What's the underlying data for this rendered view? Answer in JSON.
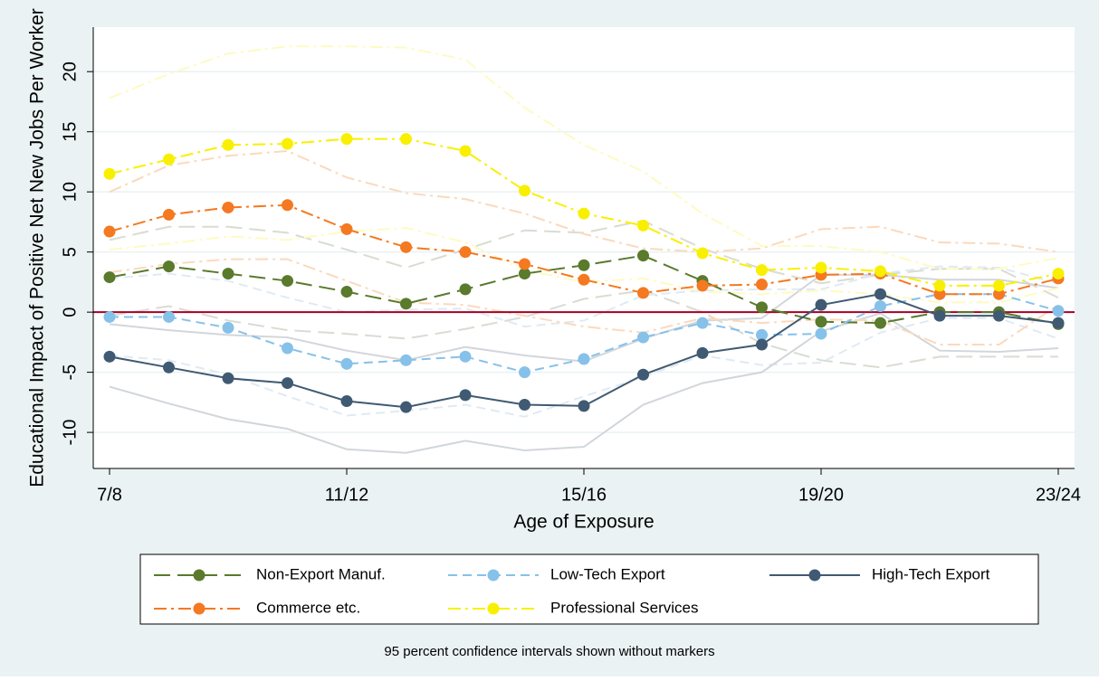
{
  "chart_data": {
    "type": "line",
    "y_label": "Educational Impact of Positive Net New Jobs Per Worker",
    "x_label": "Age of Exposure",
    "note": "95 percent confidence intervals shown without markers",
    "categories": [
      "7/8",
      null,
      null,
      null,
      "11/12",
      null,
      null,
      null,
      "15/16",
      null,
      null,
      null,
      "19/20",
      null,
      null,
      null,
      "23/24"
    ],
    "ylim": [
      -13,
      23.7
    ],
    "yticks": [
      -10,
      -5,
      0,
      5,
      10,
      15,
      20
    ],
    "grid": true,
    "hline": 0,
    "hline_color": "#a50026",
    "legend_position": "bottom",
    "series": [
      {
        "name": "Non-Export Manuf.",
        "color": "#5a7a2c",
        "ci_color": "#d9dcd2",
        "line_style": "longdash",
        "values": [
          2.9,
          3.8,
          3.2,
          2.6,
          1.7,
          0.7,
          1.9,
          3.2,
          3.9,
          4.7,
          2.6,
          0.4,
          -0.8,
          -0.9,
          0.0,
          0.0,
          -1.0
        ],
        "ci_upper": [
          6.0,
          7.1,
          7.1,
          6.6,
          5.2,
          3.7,
          5.2,
          6.8,
          6.6,
          7.6,
          5.3,
          3.6,
          2.4,
          3.1,
          3.6,
          3.6,
          1.2
        ],
        "ci_lower": [
          -0.3,
          0.5,
          -0.7,
          -1.5,
          -1.8,
          -2.2,
          -1.4,
          -0.4,
          1.1,
          1.8,
          0.0,
          -2.6,
          -4.0,
          -4.6,
          -3.7,
          -3.7,
          -3.7
        ]
      },
      {
        "name": "Low-Tech Export",
        "color": "#86c1ea",
        "ci_color": "#dfeaf4",
        "line_style": "dash",
        "values": [
          -0.4,
          -0.4,
          -1.3,
          -3.0,
          -4.3,
          -4.0,
          -3.7,
          -5.0,
          -3.9,
          -2.1,
          -0.9,
          -1.9,
          -1.8,
          0.5,
          1.5,
          1.5,
          0.1
        ],
        "ci_upper": [
          2.8,
          3.2,
          2.6,
          1.2,
          0.0,
          0.2,
          0.3,
          -1.2,
          -0.7,
          1.4,
          1.8,
          1.9,
          1.9,
          3.2,
          3.8,
          3.7,
          2.4
        ],
        "ci_lower": [
          -3.6,
          -4.0,
          -5.2,
          -7.0,
          -8.6,
          -8.2,
          -7.7,
          -8.7,
          -7.0,
          -5.4,
          -3.6,
          -4.4,
          -4.2,
          -1.7,
          -0.5,
          -0.5,
          -2.2
        ]
      },
      {
        "name": "High-Tech Export",
        "color": "#3f5a72",
        "ci_color": "#d2d6db",
        "line_style": "solid",
        "values": [
          -3.7,
          -4.6,
          -5.5,
          -5.9,
          -7.4,
          -7.9,
          -6.9,
          -7.7,
          -7.8,
          -5.2,
          -3.4,
          -2.7,
          0.6,
          1.5,
          -0.3,
          -0.3,
          -0.9
        ],
        "ci_upper": [
          -1.0,
          -1.5,
          -1.9,
          -2.1,
          -3.2,
          -4.0,
          -2.9,
          -3.6,
          -4.1,
          -2.2,
          -0.7,
          -0.5,
          3.1,
          3.1,
          2.7,
          2.7,
          2.0
        ],
        "ci_lower": [
          -6.2,
          -7.6,
          -8.9,
          -9.7,
          -11.4,
          -11.7,
          -10.7,
          -11.5,
          -11.2,
          -7.7,
          -5.9,
          -5.0,
          -1.6,
          -0.1,
          -3.2,
          -3.3,
          -3.0
        ]
      },
      {
        "name": "Commerce etc.",
        "color": "#f47920",
        "ci_color": "#fbd9bd",
        "line_style": "dashdot",
        "values": [
          6.7,
          8.1,
          8.7,
          8.9,
          6.9,
          5.4,
          5.0,
          4.0,
          2.7,
          1.6,
          2.2,
          2.3,
          3.1,
          3.2,
          1.5,
          1.5,
          2.8
        ],
        "ci_upper": [
          10.0,
          12.2,
          13.0,
          13.4,
          11.2,
          9.9,
          9.4,
          8.2,
          6.5,
          5.3,
          5.0,
          5.3,
          6.9,
          7.1,
          5.8,
          5.7,
          5.0
        ],
        "ci_lower": [
          3.3,
          4.0,
          4.4,
          4.4,
          2.6,
          0.8,
          0.6,
          -0.3,
          -1.2,
          -1.7,
          -0.5,
          -0.9,
          -0.6,
          -0.7,
          -2.7,
          -2.7,
          0.6
        ]
      },
      {
        "name": "Professional Services",
        "color": "#f8f000",
        "ci_color": "#fdfbc2",
        "line_style": "dashdot",
        "values": [
          11.5,
          12.7,
          13.9,
          14.0,
          14.4,
          14.4,
          13.4,
          10.1,
          8.2,
          7.2,
          4.9,
          3.5,
          3.7,
          3.4,
          2.2,
          2.2,
          3.2
        ],
        "ci_upper": [
          17.8,
          19.8,
          21.5,
          22.1,
          22.1,
          22.0,
          21.0,
          17.0,
          13.9,
          11.7,
          8.2,
          5.5,
          5.5,
          5.0,
          3.6,
          3.6,
          4.5
        ],
        "ci_lower": [
          5.2,
          5.7,
          6.3,
          6.0,
          6.7,
          7.0,
          5.8,
          3.5,
          2.5,
          2.8,
          1.7,
          1.5,
          1.8,
          1.5,
          0.8,
          0.8,
          2.0
        ]
      }
    ]
  }
}
